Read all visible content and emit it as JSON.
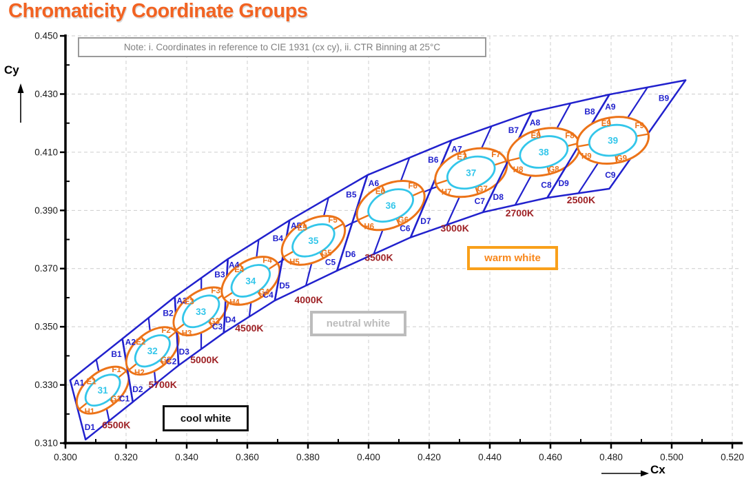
{
  "title": "Chromaticity Coordinate Groups",
  "note": "Note: i. Coordinates in reference to CIE 1931 (cx cy), ii. CTR Binning at 25°C",
  "axes": {
    "x_label": "Cx",
    "y_label": "Cy",
    "x_ticks": [
      "0.300",
      "0.320",
      "0.340",
      "0.360",
      "0.380",
      "0.400",
      "0.420",
      "0.440",
      "0.460",
      "0.480",
      "0.500",
      "0.520"
    ],
    "y_ticks": [
      "0.450",
      "0.430",
      "0.410",
      "0.390",
      "0.370",
      "0.350",
      "0.330",
      "0.310"
    ],
    "x_range": [
      0.3,
      0.52
    ],
    "y_range": [
      0.31,
      0.45
    ]
  },
  "region_labels": {
    "cool": "cool white",
    "neutral": "neutral white",
    "warm": "warm white"
  },
  "colors": {
    "title": "#f26322",
    "bin_outline": "#2121cd",
    "ellipse_outer": "#ec7318",
    "ellipse_inner": "#33c6ea",
    "cct_label": "#9e2125",
    "grid": "#cccccc",
    "axis": "#000000",
    "tick_label": "#1a1a1a",
    "note_text": "#7f7f7f",
    "cool_box": "#111111",
    "neutral_box": "#bcbcbc",
    "warm_box": "#f9a01a"
  },
  "chart_data": {
    "type": "scatter",
    "title": "Chromaticity Coordinate Groups",
    "xlabel": "Cx",
    "ylabel": "Cy",
    "xlim": [
      0.3,
      0.52
    ],
    "ylim": [
      0.31,
      0.45
    ],
    "grid": true,
    "inner_ellipse_scale": 0.66,
    "bins": [
      {
        "number": "31",
        "cct": "6500K",
        "center": {
          "cx": 0.3123,
          "cy": 0.3282
        },
        "quadrant_labels": [
          "A1",
          "B1",
          "C1",
          "D1"
        ],
        "ellipse_labels": [
          "E1",
          "F1",
          "G1",
          "H1"
        ],
        "ellipse": {
          "a": 0.01,
          "b": 0.0059,
          "tilt_deg": 39
        }
      },
      {
        "number": "32",
        "cct": "5700K",
        "center": {
          "cx": 0.3287,
          "cy": 0.3417
        },
        "quadrant_labels": [
          "A2",
          "B2",
          "C2",
          "D2"
        ],
        "ellipse_labels": [
          "E2",
          "F2",
          "G2",
          "H2"
        ],
        "ellipse": {
          "a": 0.01,
          "b": 0.0061,
          "tilt_deg": 39
        }
      },
      {
        "number": "33",
        "cct": "5000K",
        "center": {
          "cx": 0.3447,
          "cy": 0.3553
        },
        "quadrant_labels": [
          "A3",
          "B3",
          "C3",
          "D3"
        ],
        "ellipse_labels": [
          "E3",
          "F3",
          "G3",
          "H3"
        ],
        "ellipse": {
          "a": 0.0103,
          "b": 0.0063,
          "tilt_deg": 37
        }
      },
      {
        "number": "34",
        "cct": "4500K",
        "center": {
          "cx": 0.3611,
          "cy": 0.3658
        },
        "quadrant_labels": [
          "A4",
          "B4",
          "C4",
          "D4"
        ],
        "ellipse_labels": [
          "E4",
          "F4",
          "G4",
          "H4"
        ],
        "ellipse": {
          "a": 0.0106,
          "b": 0.0066,
          "tilt_deg": 33
        }
      },
      {
        "number": "35",
        "cct": "4000K",
        "center": {
          "cx": 0.3818,
          "cy": 0.3797
        },
        "quadrant_labels": [
          "A5",
          "B5",
          "C5",
          "D5"
        ],
        "ellipse_labels": [
          "E5",
          "F5",
          "G5",
          "H5"
        ],
        "ellipse": {
          "a": 0.0113,
          "b": 0.0069,
          "tilt_deg": 29
        }
      },
      {
        "number": "36",
        "cct": "3500K",
        "center": {
          "cx": 0.4073,
          "cy": 0.3917
        },
        "quadrant_labels": [
          "A6",
          "B6",
          "C6",
          "D6"
        ],
        "ellipse_labels": [
          "E6",
          "F6",
          "G6",
          "H6"
        ],
        "ellipse": {
          "a": 0.0118,
          "b": 0.0073,
          "tilt_deg": 24
        }
      },
      {
        "number": "37",
        "cct": "3000K",
        "center": {
          "cx": 0.4338,
          "cy": 0.403
        },
        "quadrant_labels": [
          "A7",
          "B7",
          "C7",
          "D7"
        ],
        "ellipse_labels": [
          "E7",
          "F7",
          "G7",
          "H7"
        ],
        "ellipse": {
          "a": 0.0122,
          "b": 0.0076,
          "tilt_deg": 18
        }
      },
      {
        "number": "38",
        "cct": "2700K",
        "center": {
          "cx": 0.4578,
          "cy": 0.4101
        },
        "quadrant_labels": [
          "A8",
          "B8",
          "C8",
          "D8"
        ],
        "ellipse_labels": [
          "E8",
          "F8",
          "G8",
          "H8"
        ],
        "ellipse": {
          "a": 0.0121,
          "b": 0.0077,
          "tilt_deg": 14
        }
      },
      {
        "number": "39",
        "cct": "2500K",
        "center": {
          "cx": 0.4806,
          "cy": 0.4141
        },
        "quadrant_labels": [
          "A9",
          "B9",
          "C9",
          "D9"
        ],
        "ellipse_labels": [
          "E9",
          "F9",
          "G9",
          "H9"
        ],
        "ellipse": {
          "a": 0.0119,
          "b": 0.0077,
          "tilt_deg": 10
        }
      }
    ],
    "separators": {
      "on_locus": [
        [
          0.3041,
          0.3214
        ],
        [
          0.3205,
          0.335
        ],
        [
          0.3367,
          0.3485
        ],
        [
          0.3529,
          0.3606
        ],
        [
          0.3715,
          0.3728
        ],
        [
          0.3946,
          0.3857
        ],
        [
          0.4206,
          0.3974
        ],
        [
          0.4458,
          0.4066
        ],
        [
          0.4692,
          0.4121
        ],
        [
          0.492,
          0.4161
        ]
      ],
      "lean_deg": [
        -14,
        -9,
        -3,
        3,
        10,
        17,
        22,
        25,
        30,
        34
      ],
      "half_length": [
        0.0105,
        0.011,
        0.0118,
        0.0127,
        0.014,
        0.0172,
        0.018,
        0.019,
        0.0205,
        0.0225
      ]
    }
  }
}
